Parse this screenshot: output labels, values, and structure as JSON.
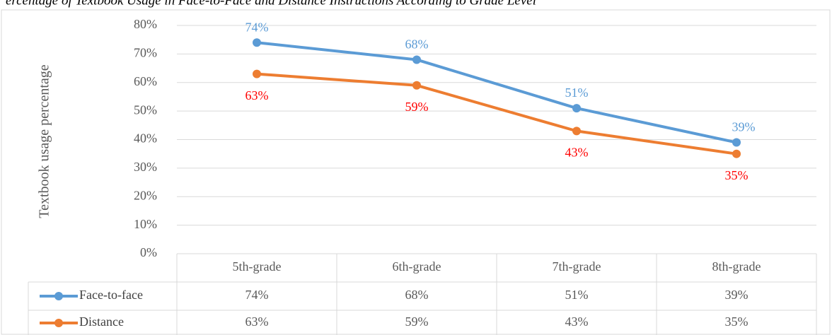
{
  "chart_data": {
    "type": "line",
    "title": "ercentage of Textbook Usage in Face-to-Face and Distance Instructions According to Grade Level",
    "y_label": "Textbook usage percentage",
    "categories": [
      "5th-grade",
      "6th-grade",
      "7th-grade",
      "8th-grade"
    ],
    "series": [
      {
        "name": "Face-to-face",
        "color": "#5b9bd5",
        "label_color": "#5b9bd5",
        "values": [
          74,
          68,
          51,
          39
        ],
        "value_labels": [
          "74%",
          "68%",
          "51%",
          "39%"
        ]
      },
      {
        "name": "Distance",
        "color": "#ed7d31",
        "label_color": "#ff0000",
        "values": [
          63,
          59,
          43,
          35
        ],
        "value_labels": [
          "63%",
          "59%",
          "43%",
          "35%"
        ]
      }
    ],
    "ylim": [
      0,
      80
    ],
    "yticks": [
      {
        "value": 0,
        "label": "0%"
      },
      {
        "value": 10,
        "label": "10%"
      },
      {
        "value": 20,
        "label": "20%"
      },
      {
        "value": 30,
        "label": "30%"
      },
      {
        "value": 40,
        "label": "40%"
      },
      {
        "value": 50,
        "label": "50%"
      },
      {
        "value": 60,
        "label": "60%"
      },
      {
        "value": 70,
        "label": "70%"
      },
      {
        "value": 80,
        "label": "80%"
      }
    ],
    "grid": true
  }
}
